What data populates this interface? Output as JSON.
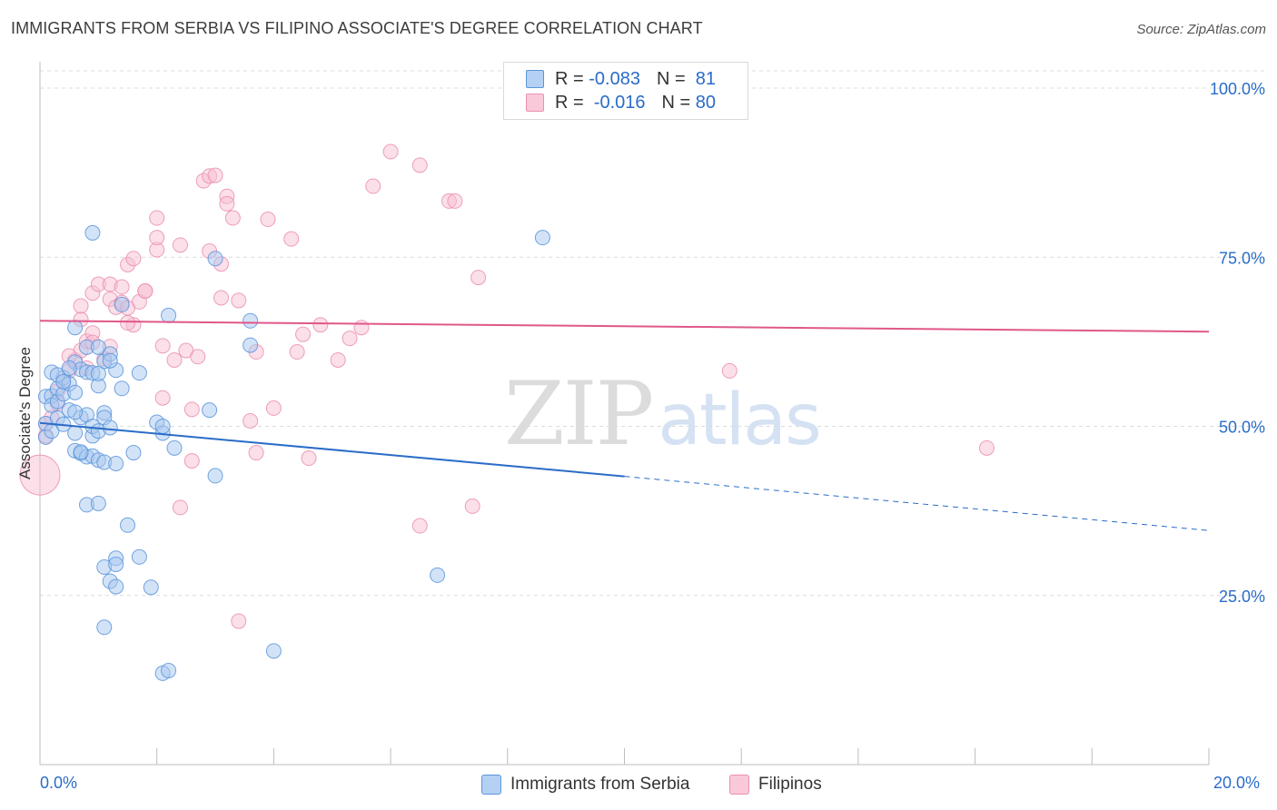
{
  "header": {
    "title": "IMMIGRANTS FROM SERBIA VS FILIPINO ASSOCIATE'S DEGREE CORRELATION CHART",
    "source": "Source: ZipAtlas.com"
  },
  "legend": {
    "rows": [
      {
        "r_label": "R =",
        "r_value": "-0.083",
        "n_label": "N =",
        "n_value": "81"
      },
      {
        "r_label": "R =",
        "r_value": "-0.016",
        "n_label": "N =",
        "n_value": "80"
      }
    ]
  },
  "bottom_legend": [
    {
      "label": "Immigrants from Serbia"
    },
    {
      "label": "Filipinos"
    }
  ],
  "watermark": {
    "zip": "ZIP",
    "atlas": "atlas"
  },
  "chart_data": {
    "type": "scatter",
    "title": "IMMIGRANTS FROM SERBIA VS FILIPINO ASSOCIATE'S DEGREE CORRELATION CHART",
    "ylabel": "Associate's Degree",
    "xlabel": "",
    "xlim": [
      0,
      20
    ],
    "ylim": [
      0,
      105
    ],
    "x_tick_labels": [
      "0.0%",
      "20.0%"
    ],
    "y_ticks": [
      25,
      50,
      75,
      100
    ],
    "y_tick_labels": [
      "25.0%",
      "50.0%",
      "75.0%",
      "100.0%"
    ],
    "grid": true,
    "colors": {
      "serbia_fill": "#a8c8f0",
      "serbia_stroke": "#5b95dc",
      "serbia_line": "#2a6cc8",
      "filipino_fill": "#f7bfd3",
      "filipino_stroke": "#eb8fb0",
      "filipino_line": "#e0588a",
      "axis_label": "#2a6cc8"
    },
    "series": [
      {
        "name": "Immigrants from Serbia",
        "r": -0.083,
        "n": 81,
        "trend": {
          "x0": 0,
          "y0": 50.5,
          "x1": 10,
          "y1": 42.6,
          "x_dash_end": 20,
          "y_dash_end": 34.6
        },
        "points": [
          [
            0.1,
            54.4
          ],
          [
            0.2,
            54.5
          ],
          [
            0.2,
            53.1
          ],
          [
            0.3,
            53.7
          ],
          [
            0.3,
            55.6
          ],
          [
            0.4,
            57.2
          ],
          [
            0.4,
            54.8
          ],
          [
            0.5,
            56.3
          ],
          [
            0.5,
            52.4
          ],
          [
            0.6,
            55.0
          ],
          [
            0.2,
            58.0
          ],
          [
            0.1,
            50.4
          ],
          [
            0.1,
            48.4
          ],
          [
            0.2,
            49.3
          ],
          [
            0.3,
            51.2
          ],
          [
            0.4,
            50.3
          ],
          [
            0.7,
            51.3
          ],
          [
            0.8,
            51.7
          ],
          [
            0.6,
            49.0
          ],
          [
            0.9,
            48.6
          ],
          [
            0.6,
            59.5
          ],
          [
            0.7,
            58.4
          ],
          [
            0.8,
            58.0
          ],
          [
            0.9,
            57.9
          ],
          [
            0.6,
            64.6
          ],
          [
            0.8,
            61.7
          ],
          [
            1.0,
            61.7
          ],
          [
            1.1,
            59.6
          ],
          [
            1.2,
            60.7
          ],
          [
            1.3,
            58.3
          ],
          [
            1.4,
            55.6
          ],
          [
            1.0,
            56.0
          ],
          [
            1.1,
            52.0
          ],
          [
            1.1,
            51.3
          ],
          [
            0.9,
            50.0
          ],
          [
            1.0,
            49.3
          ],
          [
            1.2,
            49.8
          ],
          [
            0.6,
            46.4
          ],
          [
            0.7,
            46.0
          ],
          [
            0.8,
            45.5
          ],
          [
            0.9,
            45.6
          ],
          [
            1.0,
            45.0
          ],
          [
            1.1,
            44.7
          ],
          [
            1.3,
            44.5
          ],
          [
            1.6,
            46.1
          ],
          [
            2.0,
            50.6
          ],
          [
            2.1,
            49.0
          ],
          [
            2.1,
            50.0
          ],
          [
            2.3,
            46.8
          ],
          [
            2.9,
            52.4
          ],
          [
            3.0,
            42.7
          ],
          [
            0.8,
            38.4
          ],
          [
            1.0,
            38.6
          ],
          [
            1.5,
            35.4
          ],
          [
            1.3,
            30.5
          ],
          [
            1.1,
            29.2
          ],
          [
            1.3,
            29.6
          ],
          [
            1.7,
            30.7
          ],
          [
            1.2,
            27.1
          ],
          [
            1.3,
            26.3
          ],
          [
            1.9,
            26.2
          ],
          [
            1.1,
            20.3
          ],
          [
            2.1,
            13.5
          ],
          [
            2.2,
            13.9
          ],
          [
            4.0,
            16.8
          ],
          [
            6.8,
            28.0
          ],
          [
            1.7,
            57.9
          ],
          [
            1.4,
            68.0
          ],
          [
            2.2,
            66.4
          ],
          [
            0.9,
            78.6
          ],
          [
            3.0,
            74.8
          ],
          [
            3.6,
            65.6
          ],
          [
            3.6,
            62.0
          ],
          [
            8.6,
            77.9
          ],
          [
            1.0,
            57.8
          ],
          [
            0.3,
            57.6
          ],
          [
            0.5,
            58.6
          ],
          [
            1.2,
            59.7
          ],
          [
            0.4,
            56.6
          ],
          [
            0.6,
            52.1
          ],
          [
            0.7,
            46.2
          ]
        ]
      },
      {
        "name": "Filipinos",
        "r": -0.016,
        "n": 80,
        "trend": {
          "x0": 0,
          "y0": 65.6,
          "x1": 20,
          "y1": 64.0
        },
        "points": [
          [
            0.0,
            42.8
          ],
          [
            0.1,
            48.6
          ],
          [
            0.1,
            50.4
          ],
          [
            0.2,
            51.3
          ],
          [
            0.3,
            53.4
          ],
          [
            0.4,
            56.6
          ],
          [
            0.5,
            58.2
          ],
          [
            0.6,
            59.8
          ],
          [
            0.7,
            61.2
          ],
          [
            0.8,
            62.6
          ],
          [
            0.9,
            63.8
          ],
          [
            0.7,
            65.8
          ],
          [
            0.7,
            67.8
          ],
          [
            0.9,
            69.7
          ],
          [
            1.0,
            71.0
          ],
          [
            1.2,
            68.8
          ],
          [
            1.3,
            67.6
          ],
          [
            1.4,
            68.3
          ],
          [
            1.5,
            67.5
          ],
          [
            1.6,
            65.0
          ],
          [
            1.5,
            65.3
          ],
          [
            1.7,
            68.4
          ],
          [
            1.8,
            70.0
          ],
          [
            1.8,
            70.0
          ],
          [
            1.2,
            71.0
          ],
          [
            1.4,
            70.6
          ],
          [
            1.5,
            73.9
          ],
          [
            1.6,
            74.8
          ],
          [
            2.0,
            76.1
          ],
          [
            2.0,
            77.9
          ],
          [
            2.4,
            76.8
          ],
          [
            2.0,
            80.8
          ],
          [
            2.8,
            86.3
          ],
          [
            2.9,
            87.0
          ],
          [
            3.0,
            87.1
          ],
          [
            3.2,
            84.0
          ],
          [
            3.2,
            82.9
          ],
          [
            3.3,
            80.8
          ],
          [
            2.9,
            75.9
          ],
          [
            3.1,
            74.0
          ],
          [
            3.1,
            69.0
          ],
          [
            3.4,
            68.6
          ],
          [
            3.9,
            80.6
          ],
          [
            4.3,
            77.7
          ],
          [
            3.7,
            61.0
          ],
          [
            4.4,
            61.0
          ],
          [
            4.5,
            63.6
          ],
          [
            4.8,
            65.0
          ],
          [
            5.1,
            59.8
          ],
          [
            5.3,
            63.0
          ],
          [
            5.5,
            64.6
          ],
          [
            4.0,
            52.7
          ],
          [
            3.6,
            50.8
          ],
          [
            3.7,
            46.1
          ],
          [
            4.6,
            45.3
          ],
          [
            2.1,
            61.9
          ],
          [
            2.5,
            61.2
          ],
          [
            2.7,
            60.3
          ],
          [
            2.3,
            59.8
          ],
          [
            2.1,
            54.2
          ],
          [
            2.6,
            52.5
          ],
          [
            2.6,
            44.9
          ],
          [
            2.4,
            38.0
          ],
          [
            3.4,
            21.2
          ],
          [
            5.7,
            85.5
          ],
          [
            6.0,
            90.6
          ],
          [
            6.5,
            88.6
          ],
          [
            7.0,
            83.3
          ],
          [
            7.1,
            83.3
          ],
          [
            7.5,
            72.0
          ],
          [
            7.4,
            38.2
          ],
          [
            6.5,
            35.3
          ],
          [
            11.8,
            58.2
          ],
          [
            16.2,
            46.8
          ],
          [
            0.5,
            60.4
          ],
          [
            0.3,
            55.2
          ],
          [
            0.8,
            58.6
          ],
          [
            0.9,
            62.4
          ],
          [
            1.1,
            60.0
          ],
          [
            1.2,
            61.8
          ]
        ]
      }
    ]
  }
}
